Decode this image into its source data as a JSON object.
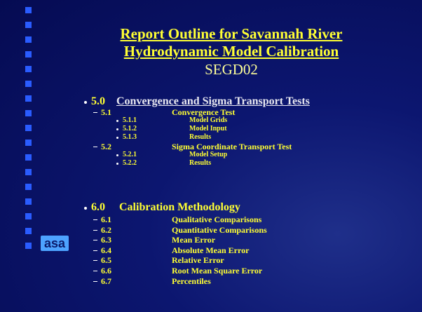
{
  "title_lines": [
    "Report Outline for Savannah River",
    "Hydrodynamic Model Calibration"
  ],
  "subtitle": "SEGD02",
  "sections": [
    {
      "number": "5.0",
      "title": "Convergence and Sigma Transport Tests",
      "items": [
        {
          "number": "5.1",
          "title": "Convergence Test",
          "subitems": [
            {
              "number": "5.1.1",
              "title": "Model Grids"
            },
            {
              "number": "5.1.2",
              "title": "Model Input"
            },
            {
              "number": "5.1.3",
              "title": "Results"
            }
          ]
        },
        {
          "number": "5.2",
          "title": "Sigma Coordinate Transport Test",
          "subitems": [
            {
              "number": "5.2.1",
              "title": "Model Setup"
            },
            {
              "number": "5.2.2",
              "title": "Results"
            }
          ]
        }
      ]
    },
    {
      "number": "6.0",
      "title": "Calibration Methodology",
      "items": [
        {
          "number": "6.1",
          "title": "Qualitative Comparisons"
        },
        {
          "number": "6.2",
          "title": "Quantitative Comparisons"
        },
        {
          "number": "6.3",
          "title": "Mean Error"
        },
        {
          "number": "6.4",
          "title": "Absolute Mean Error"
        },
        {
          "number": "6.5",
          "title": "Relative Error"
        },
        {
          "number": "6.6",
          "title": "Root Mean Square Error"
        },
        {
          "number": "6.7",
          "title": "Percentiles"
        }
      ]
    }
  ],
  "logo": "asa"
}
